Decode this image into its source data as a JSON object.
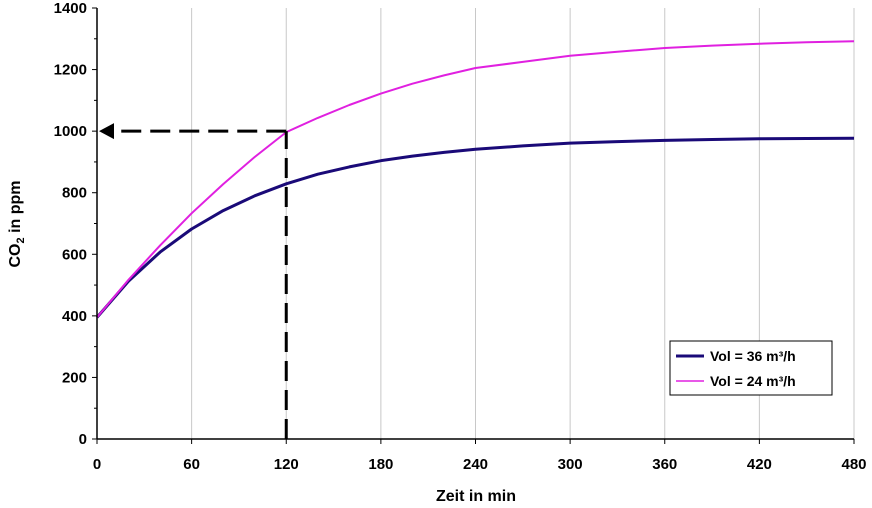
{
  "chart_data": {
    "type": "line",
    "title": "",
    "xlabel": "Zeit in min",
    "ylabel": {
      "prefix": "CO",
      "sub": "2",
      "suffix": " in ppm"
    },
    "xlim": [
      0,
      480
    ],
    "ylim": [
      0,
      1400
    ],
    "x_ticks": [
      "0",
      "60",
      "120",
      "180",
      "240",
      "300",
      "360",
      "420",
      "480"
    ],
    "y_ticks": [
      "0",
      "200",
      "400",
      "600",
      "800",
      "1000",
      "1200",
      "1400"
    ],
    "grid": "vertical",
    "legend_position": "bottom-right",
    "series": [
      {
        "name": "Vol = 36 m³/h",
        "color": "#1a0a78",
        "x": [
          0,
          20,
          40,
          60,
          80,
          100,
          120,
          140,
          160,
          180,
          200,
          220,
          240,
          270,
          300,
          330,
          360,
          390,
          420,
          450,
          480
        ],
        "y": [
          395,
          513,
          607,
          682,
          742,
          790,
          829,
          860,
          884,
          904,
          919,
          931,
          941,
          952,
          961,
          966,
          970,
          973,
          975,
          976,
          977
        ]
      },
      {
        "name": "Vol = 24 m³/h",
        "color": "#e020e0",
        "x": [
          0,
          20,
          40,
          60,
          80,
          100,
          120,
          140,
          160,
          180,
          200,
          220,
          240,
          270,
          300,
          330,
          360,
          390,
          420,
          450,
          480
        ],
        "y": [
          395,
          517,
          629,
          733,
          828,
          916,
          997,
          1043,
          1085,
          1122,
          1154,
          1181,
          1205,
          1225,
          1245,
          1258,
          1270,
          1278,
          1284,
          1289,
          1292
        ]
      }
    ],
    "annotation": {
      "x": 120,
      "y": 1000,
      "style": "dashed-arrow"
    }
  }
}
